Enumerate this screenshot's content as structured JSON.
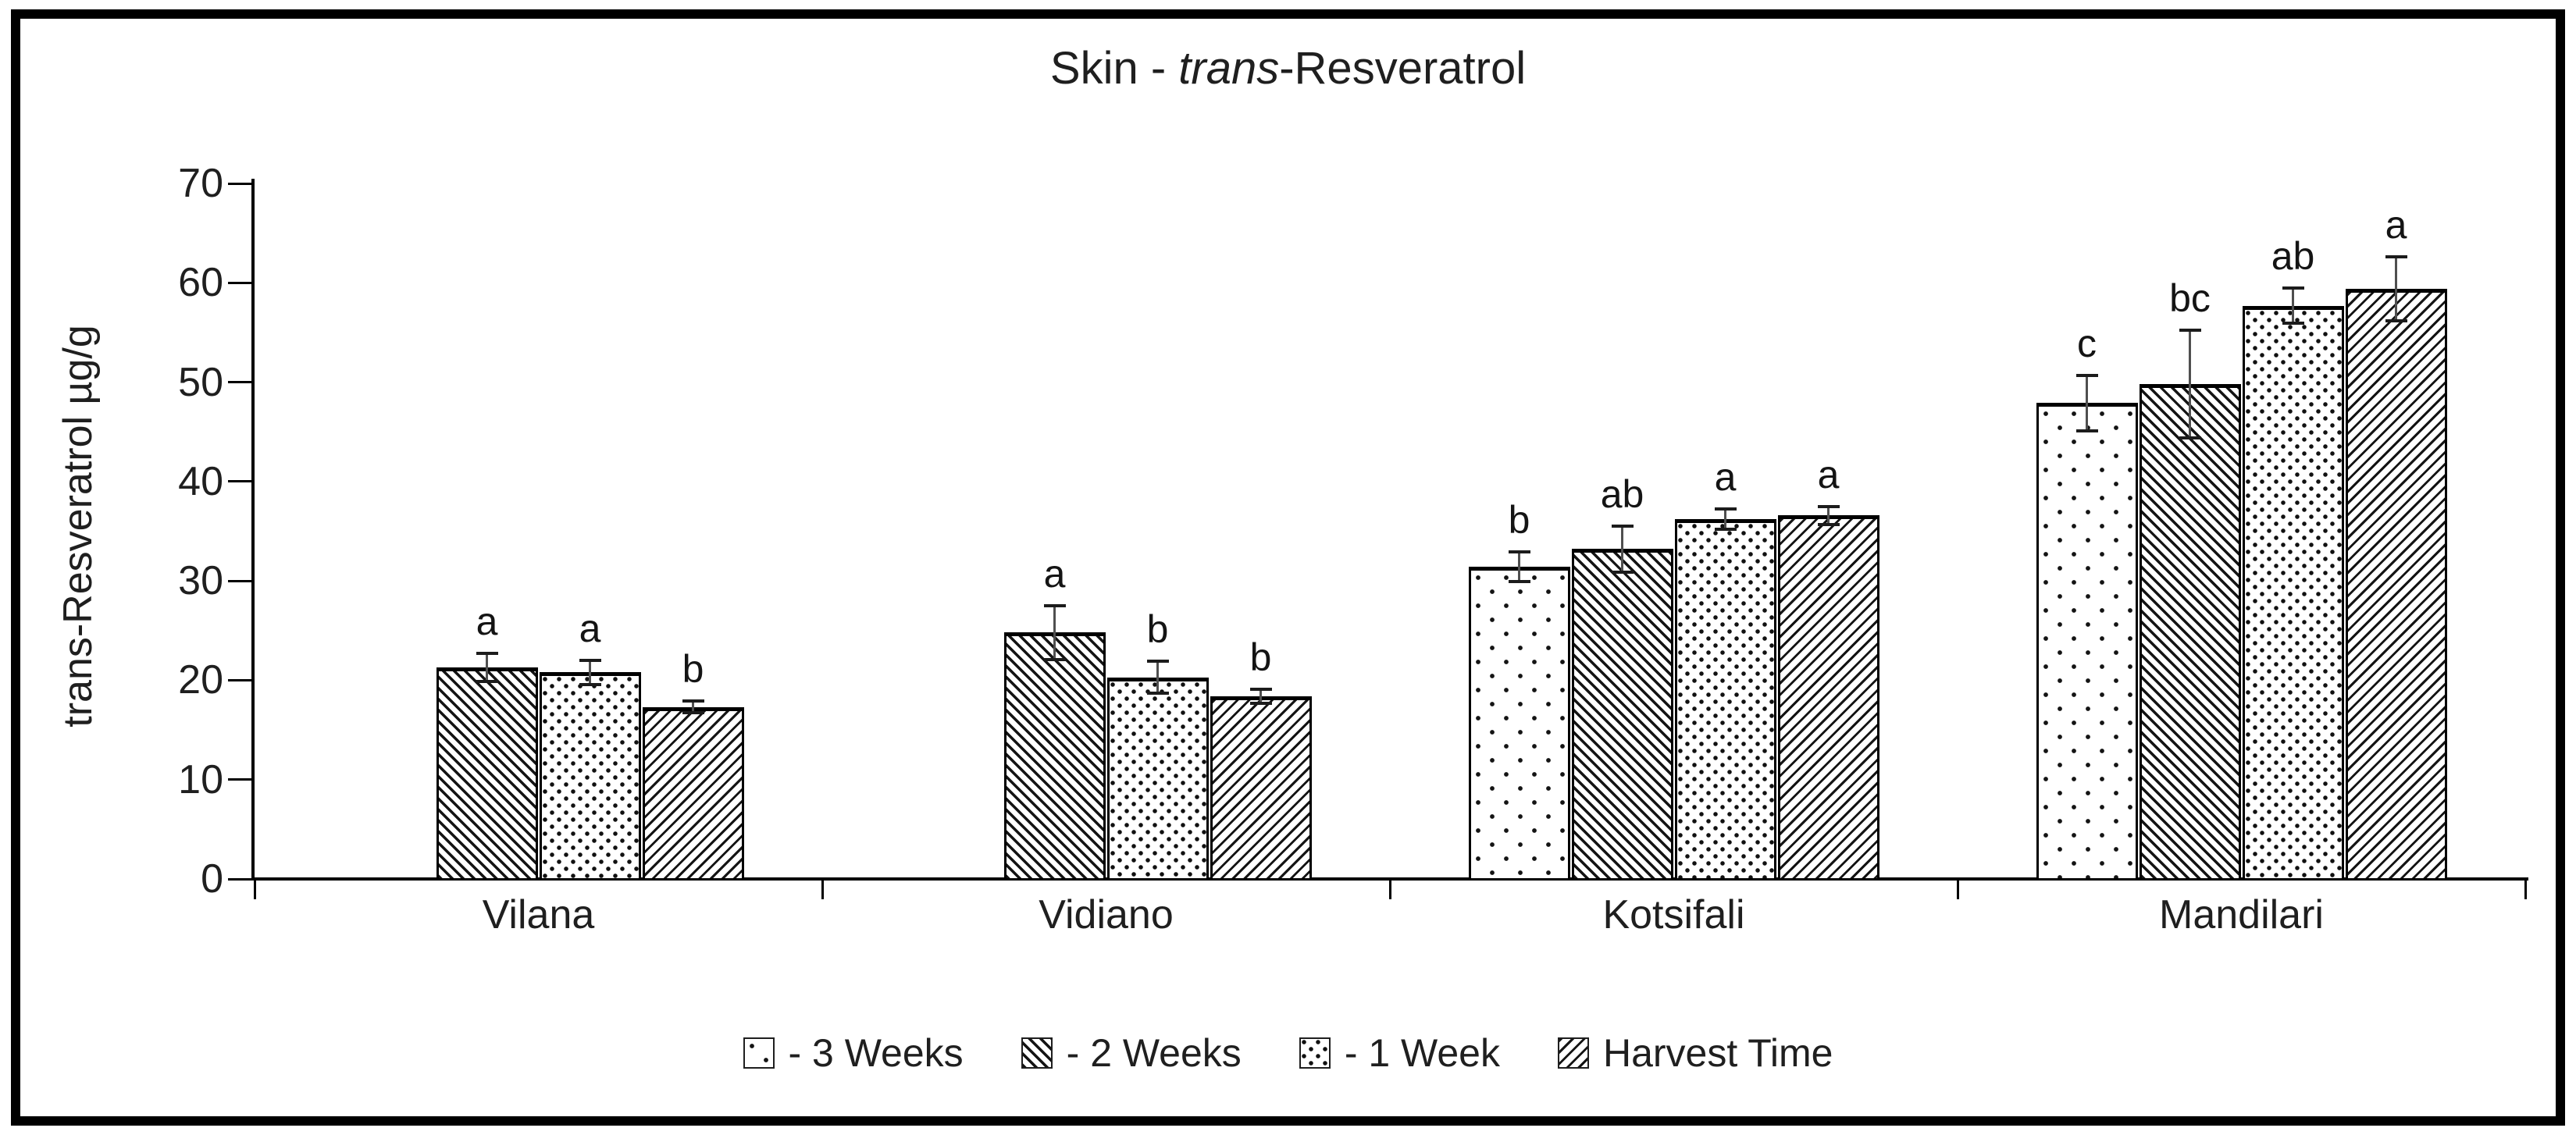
{
  "title": {
    "prefix": "Skin - ",
    "italic": "trans",
    "suffix": "-Resveratrol"
  },
  "colors": {
    "ink": "#1a1a1a",
    "axis": "#000000",
    "error_bar_line": "#4f4f4f",
    "error_bar_cap": "#1c1c1c",
    "background": "#ffffff"
  },
  "chart_data": {
    "type": "bar",
    "title": "Skin - trans-Resveratrol",
    "title_italic_word": "trans",
    "xlabel": "",
    "ylabel": "trans-Resveratrol µg/g",
    "ylim": [
      0,
      70
    ],
    "ytick_step": 10,
    "yticks": [
      0,
      10,
      20,
      30,
      40,
      50,
      60,
      70
    ],
    "grid": false,
    "legend_position": "bottom",
    "error_bars": true,
    "categories": [
      "Vilana",
      "Vidiano",
      "Kotsifali",
      "Mandilari"
    ],
    "series": [
      {
        "name": "- 3 Weeks",
        "pattern": "dots-sparse",
        "values": [
          null,
          null,
          31.4,
          47.9
        ],
        "errors": [
          null,
          null,
          1.5,
          2.8
        ],
        "sig_letters": [
          null,
          null,
          "b",
          "c"
        ]
      },
      {
        "name": "- 2 Weeks",
        "pattern": "diag-backslash",
        "values": [
          21.3,
          24.8,
          33.2,
          49.8
        ],
        "errors": [
          1.4,
          2.7,
          2.3,
          5.4
        ],
        "sig_letters": [
          "a",
          "a",
          "ab",
          "bc"
        ]
      },
      {
        "name": "- 1 Week",
        "pattern": "dots-dense",
        "values": [
          20.8,
          20.3,
          36.2,
          57.7
        ],
        "errors": [
          1.2,
          1.6,
          1.0,
          1.8
        ],
        "sig_letters": [
          "a",
          "b",
          "a",
          "ab"
        ]
      },
      {
        "name": "Harvest Time",
        "pattern": "diag-slash",
        "values": [
          17.3,
          18.4,
          36.6,
          59.4
        ],
        "errors": [
          0.6,
          0.7,
          0.9,
          3.2
        ],
        "sig_letters": [
          "b",
          "b",
          "a",
          "a"
        ]
      }
    ]
  }
}
